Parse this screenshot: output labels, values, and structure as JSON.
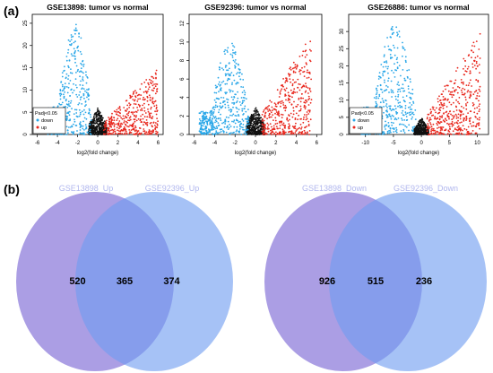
{
  "panel_a_label": "(a)",
  "panel_b_label": "(b)",
  "colors": {
    "down": "#2aa7e8",
    "up": "#e8271d",
    "ns": "#111111"
  },
  "chart_data": [
    {
      "type": "scatter",
      "title": "GSE13898: tumor vs normal",
      "xlabel": "log2(fold change)",
      "ylabel": "-log10(Pvalue)",
      "xlim": [
        -6.5,
        6.5
      ],
      "ylim": [
        0,
        27
      ],
      "xticks": [
        "-6",
        "-4",
        "-2",
        "0",
        "2",
        "4",
        "6"
      ],
      "xtick_values": [
        -6,
        -4,
        -2,
        0,
        2,
        4,
        6
      ],
      "yticks": [
        "0",
        "5",
        "10",
        "15",
        "20",
        "25"
      ],
      "ytick_values": [
        0,
        5,
        10,
        15,
        20,
        25
      ],
      "legend": {
        "title": "Padj<0.05",
        "items": [
          "down",
          "up"
        ],
        "position": "bottom-left"
      },
      "cloud": {
        "down_x": [
          -5,
          -0.6
        ],
        "down_peak": 25,
        "up_x": [
          0.6,
          6
        ],
        "up_peak": 15,
        "ns_peak": 6
      }
    },
    {
      "type": "scatter",
      "title": "GSE92396: tumor vs normal",
      "xlabel": "log2(fold change)",
      "ylabel": "-log10(Pvalue)",
      "xlim": [
        -6.5,
        6.5
      ],
      "ylim": [
        0,
        13
      ],
      "xticks": [
        "-6",
        "-4",
        "-2",
        "0",
        "2",
        "4",
        "6"
      ],
      "xtick_values": [
        -6,
        -4,
        -2,
        0,
        2,
        4,
        6
      ],
      "yticks": [
        "0",
        "2",
        "4",
        "6",
        "8",
        "10",
        "12"
      ],
      "ytick_values": [
        0,
        2,
        4,
        6,
        8,
        10,
        12
      ],
      "legend": null,
      "cloud": {
        "down_x": [
          -5.5,
          -0.6
        ],
        "down_peak": 10,
        "up_x": [
          0.6,
          5.5
        ],
        "up_peak": 11,
        "ns_peak": 3
      }
    },
    {
      "type": "scatter",
      "title": "GSE26886: tumor vs normal",
      "xlabel": "log2(fold change)",
      "ylabel": "-log10(Pvalue)",
      "xlim": [
        -13,
        12
      ],
      "ylim": [
        0,
        35
      ],
      "xticks": [
        "-10",
        "-5",
        "0",
        "5",
        "10"
      ],
      "xtick_values": [
        -10,
        -5,
        0,
        5,
        10
      ],
      "yticks": [
        "0",
        "5",
        "10",
        "15",
        "20",
        "25",
        "30"
      ],
      "ytick_values": [
        0,
        5,
        10,
        15,
        20,
        25,
        30
      ],
      "legend": {
        "title": "Padj<0.05",
        "items": [
          "down",
          "up"
        ],
        "position": "bottom-left"
      },
      "cloud": {
        "down_x": [
          -11,
          -1
        ],
        "down_peak": 32,
        "up_x": [
          1,
          10.5
        ],
        "up_peak": 30,
        "ns_peak": 5
      }
    },
    {
      "type": "venn",
      "sets": [
        "GSE13898_Up",
        "GSE92396_Up"
      ],
      "values": {
        "only_a": 520,
        "both": 365,
        "only_b": 374
      }
    },
    {
      "type": "venn",
      "sets": [
        "GSE13898_Down",
        "GSE92396_Down"
      ],
      "values": {
        "only_a": 926,
        "both": 515,
        "only_b": 236
      }
    }
  ]
}
